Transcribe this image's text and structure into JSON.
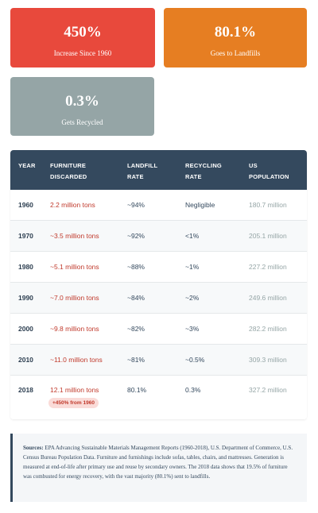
{
  "cards": [
    {
      "value": "450%",
      "label": "Increase Since 1960",
      "color": "#e8493c"
    },
    {
      "value": "80.1%",
      "label": "Goes to Landfills",
      "color": "#e67e22"
    },
    {
      "value": "0.3%",
      "label": "Gets Recycled",
      "color": "#95a5a6"
    }
  ],
  "chart_data": {
    "type": "table",
    "columns": [
      "YEAR",
      "FURNITURE DISCARDED",
      "LANDFILL RATE",
      "RECYCLING RATE",
      "US POPULATION"
    ],
    "rows": [
      {
        "year": "1960",
        "discarded": "2.2 million tons",
        "landfill": "~94%",
        "recycling": "Negligible",
        "population": "180.7 million"
      },
      {
        "year": "1970",
        "discarded": "~3.5 million tons",
        "landfill": "~92%",
        "recycling": "<1%",
        "population": "205.1 million"
      },
      {
        "year": "1980",
        "discarded": "~5.1 million tons",
        "landfill": "~88%",
        "recycling": "~1%",
        "population": "227.2 million"
      },
      {
        "year": "1990",
        "discarded": "~7.0 million tons",
        "landfill": "~84%",
        "recycling": "~2%",
        "population": "249.6 million"
      },
      {
        "year": "2000",
        "discarded": "~9.8 million tons",
        "landfill": "~82%",
        "recycling": "~3%",
        "population": "282.2 million"
      },
      {
        "year": "2010",
        "discarded": "~11.0 million tons",
        "landfill": "~81%",
        "recycling": "~0.5%",
        "population": "309.3 million"
      },
      {
        "year": "2018",
        "discarded": "12.1 million tons",
        "landfill": "80.1%",
        "recycling": "0.3%",
        "population": "327.2 million",
        "badge": "+450% from 1960"
      }
    ]
  },
  "header": {
    "year": "YEAR",
    "discarded_1": "FURNITURE",
    "discarded_2": "DISCARDED",
    "landfill_1": "LANDFILL",
    "landfill_2": "RATE",
    "recycling_1": "RECYCLING",
    "recycling_2": "RATE",
    "population_1": "US",
    "population_2": "POPULATION"
  },
  "notes": {
    "label": "Sources:",
    "text": " EPA Advancing Sustainable Materials Management Reports (1960-2018), U.S. Department of Commerce, U.S. Census Bureau Population Data. Furniture and furnishings include sofas, tables, chairs, and mattresses. Generation is measured at end-of-life after primary use and reuse by secondary owners. The 2018 data shows that 19.5% of furniture was combusted for energy recovery, with the vast majority (80.1%) sent to landfills."
  }
}
